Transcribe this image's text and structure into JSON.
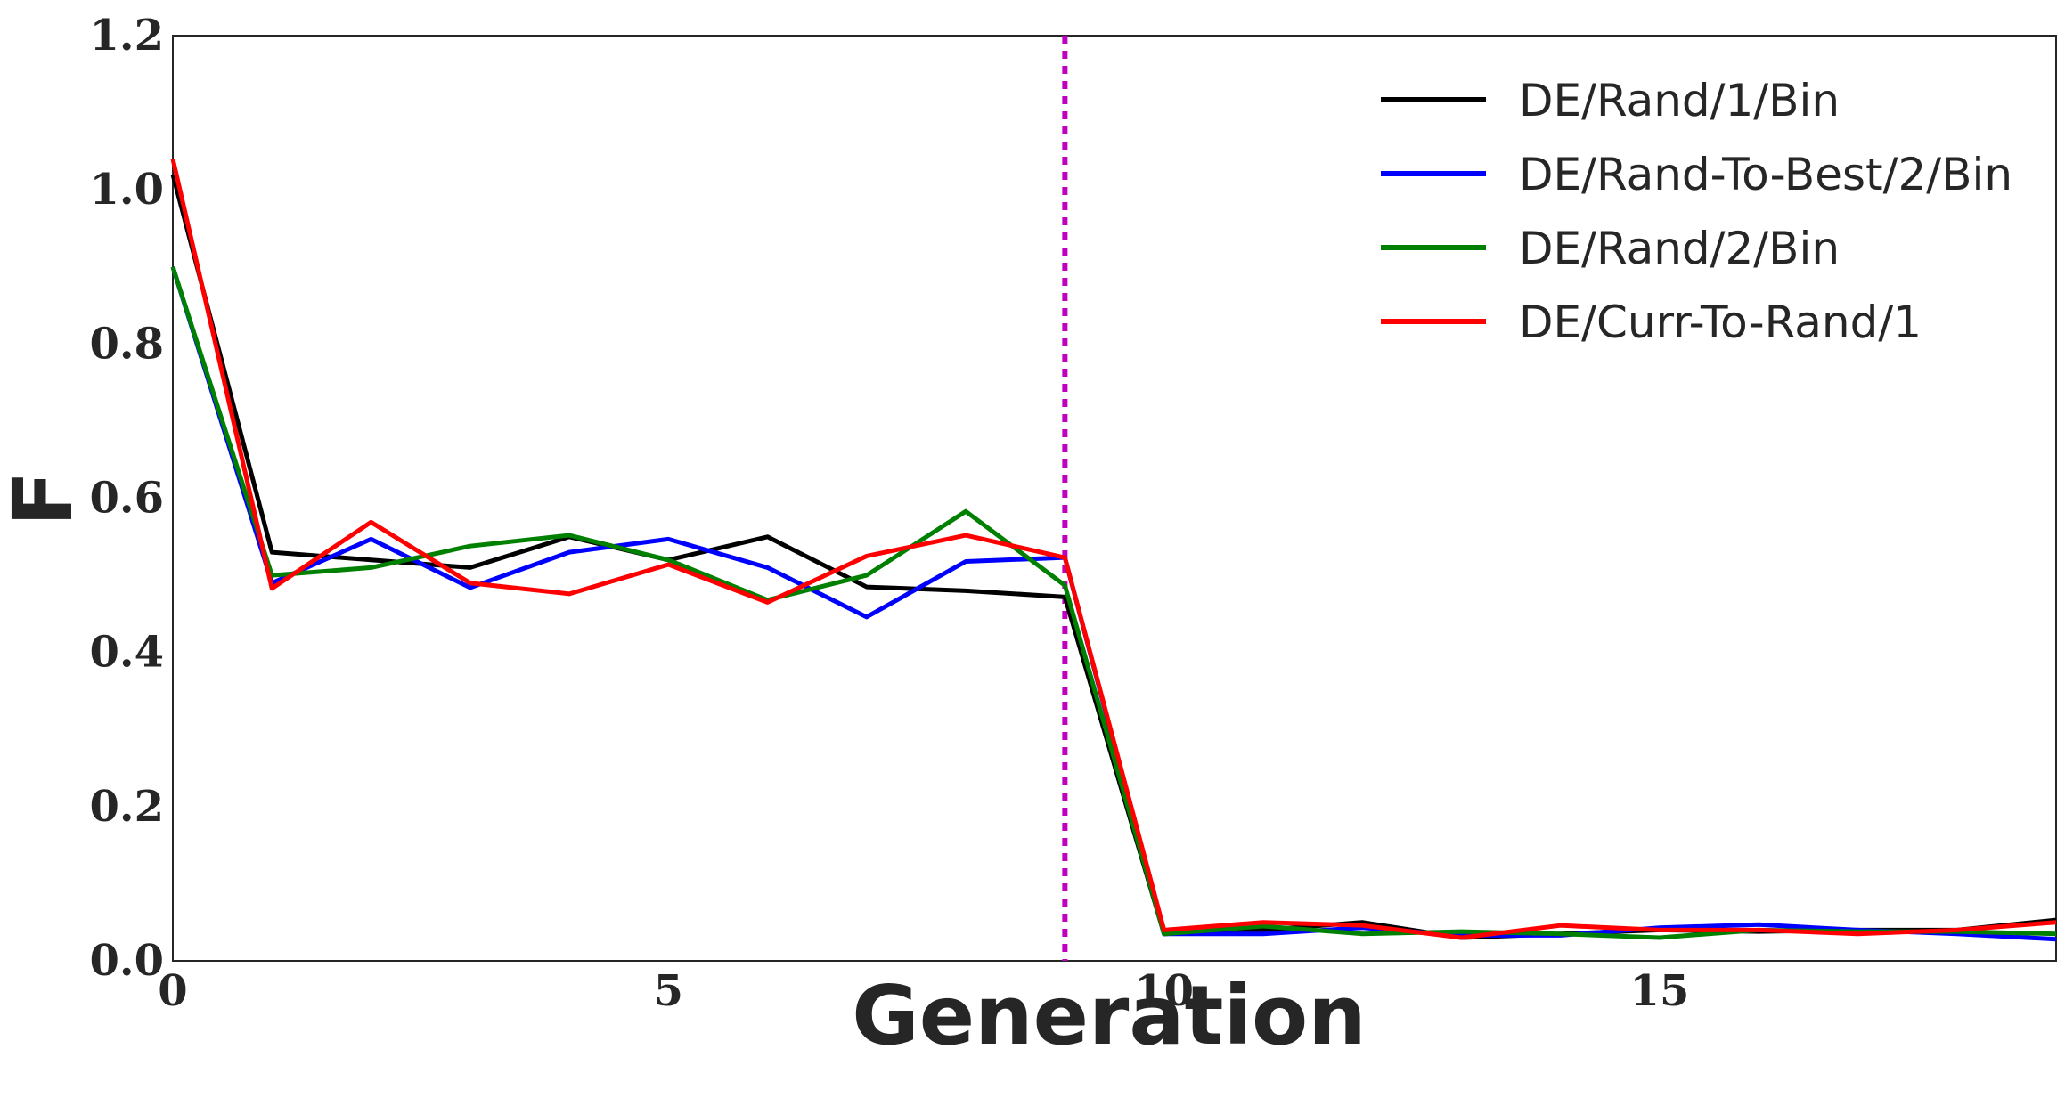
{
  "chart_data": {
    "type": "line",
    "title": "",
    "xlabel": "Generation",
    "ylabel": "F",
    "xlim": [
      0,
      19
    ],
    "ylim": [
      0.0,
      1.2
    ],
    "xticks": [
      0,
      5,
      10,
      15
    ],
    "xtick_labels": [
      "0",
      "5",
      "10",
      "15"
    ],
    "yticks": [
      0.0,
      0.2,
      0.4,
      0.6,
      0.8,
      1.0,
      1.2
    ],
    "ytick_labels": [
      "0.0",
      "0.2",
      "0.4",
      "0.6",
      "0.8",
      "1.0",
      "1.2"
    ],
    "grid": false,
    "legend_position": "top-right",
    "x": [
      0,
      1,
      2,
      3,
      4,
      5,
      6,
      7,
      8,
      9,
      10,
      11,
      12,
      13,
      14,
      15,
      16,
      17,
      18,
      19
    ],
    "series": [
      {
        "name": "DE/Rand/1/Bin",
        "color": "#000000",
        "values": [
          1.02,
          0.53,
          0.52,
          0.51,
          0.55,
          0.52,
          0.55,
          0.485,
          0.48,
          0.472,
          0.035,
          0.04,
          0.05,
          0.03,
          0.035,
          0.04,
          0.038,
          0.04,
          0.04,
          0.053
        ]
      },
      {
        "name": "DE/Rand-To-Best/2/Bin",
        "color": "#0000ff",
        "values": [
          0.9,
          0.49,
          0.547,
          0.484,
          0.53,
          0.547,
          0.51,
          0.446,
          0.518,
          0.523,
          0.035,
          0.035,
          0.043,
          0.033,
          0.033,
          0.043,
          0.047,
          0.04,
          0.035,
          0.028
        ]
      },
      {
        "name": "DE/Rand/2/Bin",
        "color": "#008000",
        "values": [
          0.9,
          0.5,
          0.51,
          0.538,
          0.552,
          0.52,
          0.468,
          0.5,
          0.583,
          0.487,
          0.035,
          0.045,
          0.035,
          0.038,
          0.035,
          0.03,
          0.04,
          0.038,
          0.038,
          0.035
        ]
      },
      {
        "name": "DE/Curr-To-Rand/1",
        "color": "#ff0000",
        "values": [
          1.04,
          0.483,
          0.569,
          0.49,
          0.476,
          0.514,
          0.465,
          0.525,
          0.552,
          0.523,
          0.04,
          0.05,
          0.046,
          0.03,
          0.046,
          0.04,
          0.04,
          0.035,
          0.04,
          0.05
        ]
      }
    ],
    "annotations": [
      {
        "type": "vertical-line",
        "x": 9,
        "style": "dotted",
        "color": "#bf00bf"
      }
    ]
  }
}
